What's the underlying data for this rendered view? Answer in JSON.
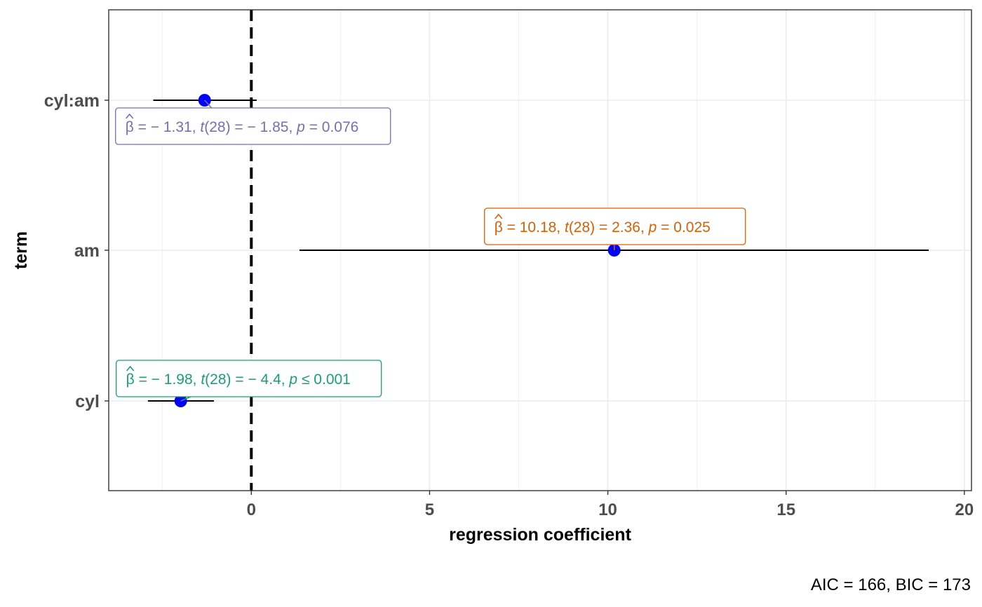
{
  "chart_data": {
    "type": "scatter",
    "subtype": "coefficient-plot",
    "xlabel": "regression coefficient",
    "ylabel": "term",
    "xlim": [
      -4,
      20.2
    ],
    "x_ticks": [
      0,
      5,
      10,
      15,
      20
    ],
    "grid": true,
    "reference_line": {
      "x": 0,
      "style": "dashed"
    },
    "point_color": "#0000ff",
    "terms": [
      {
        "term": "cyl",
        "estimate": -1.98,
        "conf_low": -2.9,
        "conf_high": -1.05,
        "label_color": "#1b9e77",
        "label": {
          "beta": "= − 1.98,",
          "df": "(28)",
          "t": "= − 4.4,",
          "p": "≤ 0.001"
        }
      },
      {
        "term": "am",
        "estimate": 10.18,
        "conf_low": 1.35,
        "conf_high": 19.0,
        "label_color": "#d95f02",
        "label": {
          "beta": "= 10.18,",
          "df": "(28)",
          "t": "= 2.36,",
          "p": "= 0.025"
        }
      },
      {
        "term": "cyl:am",
        "estimate": -1.31,
        "conf_low": -2.75,
        "conf_high": 0.15,
        "label_color": "#7570b3",
        "label": {
          "beta": "= − 1.31,",
          "df": "(28)",
          "t": "= − 1.85,",
          "p": "= 0.076"
        }
      }
    ],
    "caption": "AIC = 166, BIC = 173"
  }
}
